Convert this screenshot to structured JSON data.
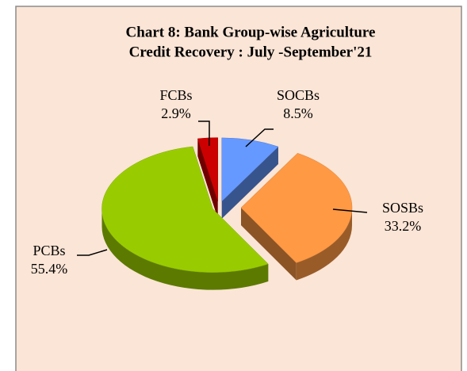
{
  "chart_data": {
    "type": "pie",
    "title": [
      "Chart 8: Bank Group-wise  Agriculture",
      "Credit  Recovery : July -September'21"
    ],
    "categories": [
      "SOCBs",
      "SOSBs",
      "PCBs",
      "FCBs"
    ],
    "values": [
      8.5,
      33.2,
      55.4,
      2.9
    ],
    "value_labels": [
      "8.5%",
      "33.2%",
      "55.4%",
      "2.9%"
    ],
    "colors": [
      "#6699ff",
      "#ff9944",
      "#99cc00",
      "#cc0000"
    ]
  }
}
